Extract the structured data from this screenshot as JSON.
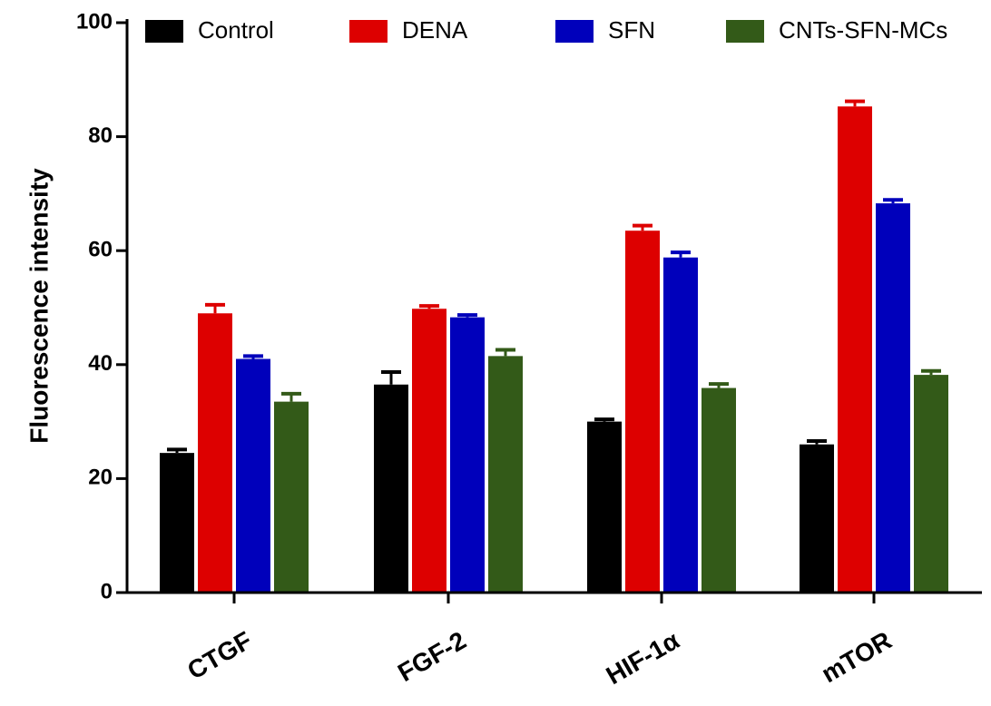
{
  "chart_data": {
    "type": "bar",
    "title": "",
    "xlabel": "",
    "ylabel": "Fluorescence intensity",
    "ylim": [
      0,
      100
    ],
    "yticks": [
      "0",
      "20",
      "40",
      "60",
      "80",
      "100"
    ],
    "categories": [
      "CTGF",
      "FGF-2",
      "HIF-1α",
      "mTOR"
    ],
    "series": [
      {
        "name": "Control",
        "color": "#000000",
        "values": [
          24.5,
          36.5,
          30.0,
          26.0
        ],
        "errors": [
          0.6,
          2.2,
          0.4,
          0.6
        ]
      },
      {
        "name": "DENA",
        "color": "#dd0000",
        "values": [
          49.0,
          49.8,
          63.5,
          85.3
        ],
        "errors": [
          1.5,
          0.5,
          0.9,
          0.9
        ]
      },
      {
        "name": "SFN",
        "color": "#0000bb",
        "values": [
          41.0,
          48.3,
          58.8,
          68.3
        ],
        "errors": [
          0.5,
          0.4,
          0.9,
          0.6
        ]
      },
      {
        "name": "CNTs-SFN-MCs",
        "color": "#335a18",
        "values": [
          33.5,
          41.5,
          35.9,
          38.2
        ],
        "errors": [
          1.4,
          1.1,
          0.7,
          0.7
        ]
      }
    ],
    "legend_position": "top",
    "grid": false
  }
}
